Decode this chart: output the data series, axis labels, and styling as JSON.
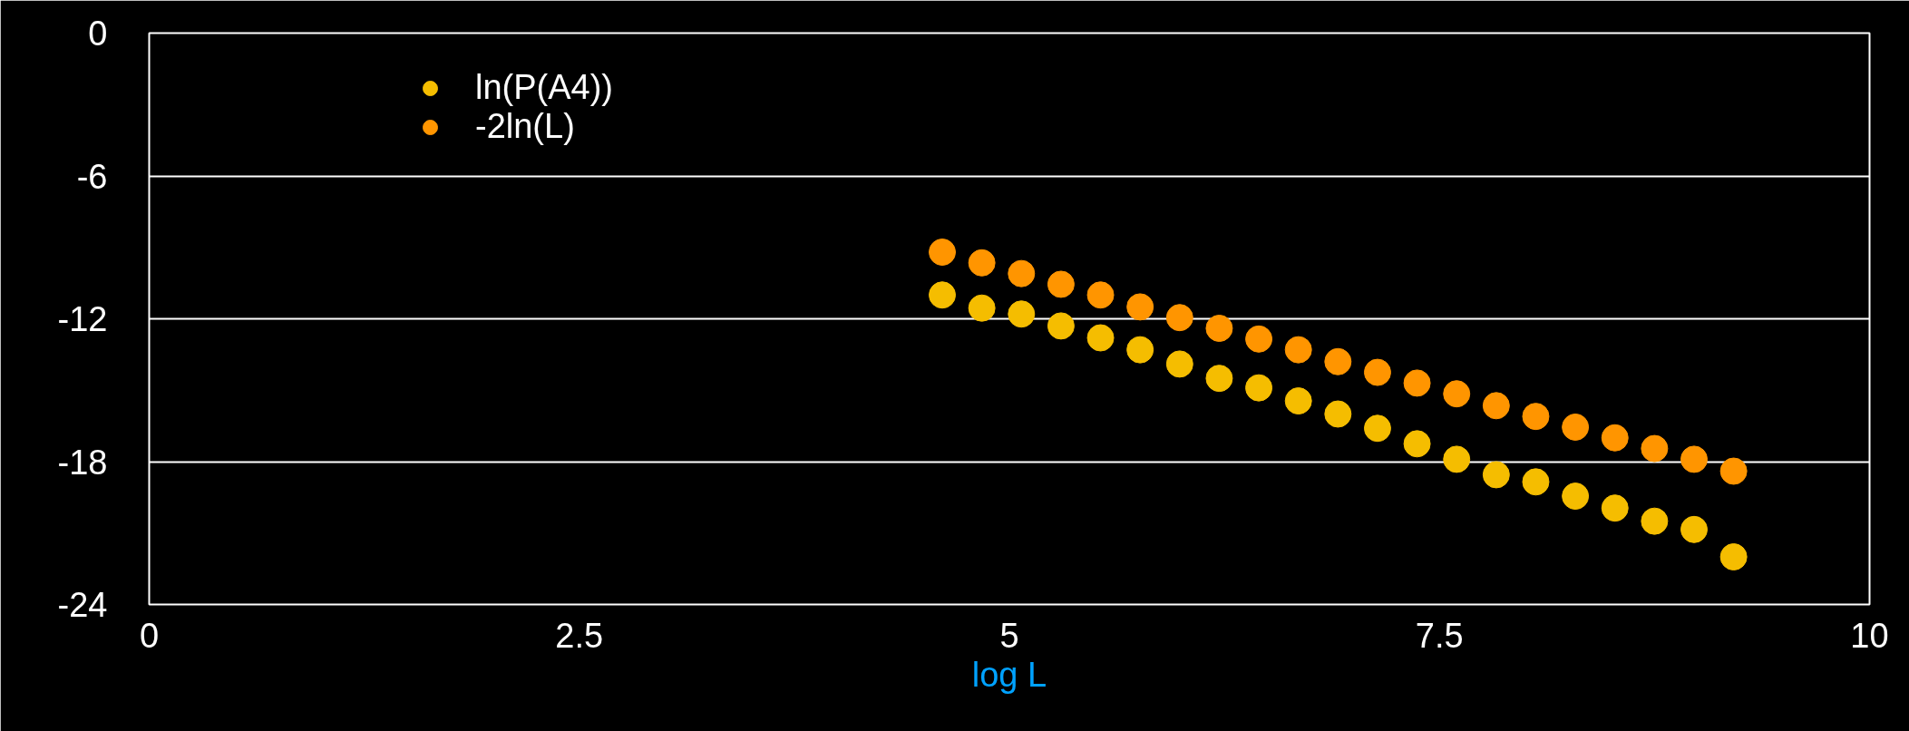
{
  "chart_data": {
    "type": "scatter",
    "xlabel": "log L",
    "x": [
      4.61,
      4.84,
      5.07,
      5.3,
      5.53,
      5.76,
      5.99,
      6.22,
      6.45,
      6.68,
      6.91,
      7.14,
      7.37,
      7.6,
      7.83,
      8.06,
      8.29,
      8.52,
      8.75,
      8.98,
      9.21
    ],
    "series": [
      {
        "name": "ln(P(A4))",
        "color": "#f5bd00",
        "values": [
          -11.0,
          -11.55,
          -11.8,
          -12.3,
          -12.8,
          -13.3,
          -13.9,
          -14.5,
          -14.9,
          -15.45,
          -16.0,
          -16.6,
          -17.25,
          -17.9,
          -18.55,
          -18.85,
          -19.45,
          -19.95,
          -20.5,
          -20.85,
          -22.0
        ]
      },
      {
        "name": "-2ln(L)",
        "color": "#ff9500",
        "values": [
          -9.2,
          -9.65,
          -10.1,
          -10.55,
          -11.0,
          -11.5,
          -11.95,
          -12.4,
          -12.85,
          -13.3,
          -13.8,
          -14.25,
          -14.7,
          -15.15,
          -15.65,
          -16.1,
          -16.55,
          -17.0,
          -17.45,
          -17.9,
          -18.4
        ]
      }
    ],
    "xlim": [
      0,
      10
    ],
    "ylim": [
      -24,
      0
    ],
    "xticks": [
      0,
      2.5,
      5,
      7.5,
      10
    ],
    "yticks": [
      0,
      -6,
      -12,
      -18,
      -24
    ],
    "grid": "y",
    "legend": "top left",
    "marker": "circle"
  }
}
